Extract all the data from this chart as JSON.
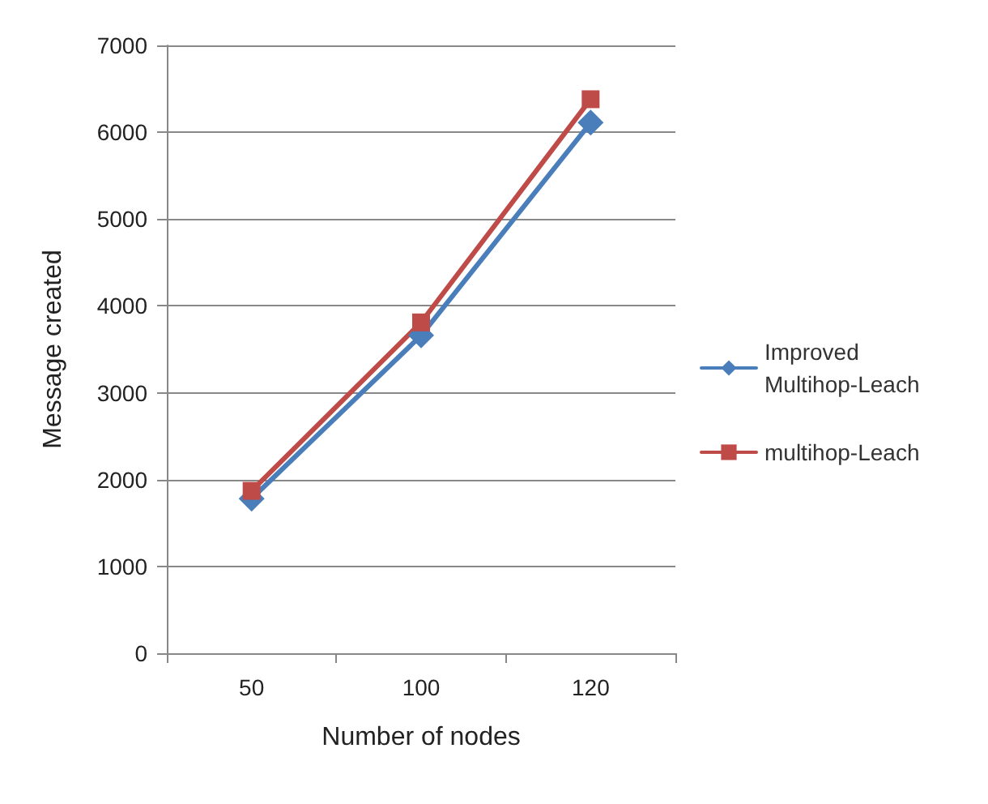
{
  "chart_data": {
    "type": "line",
    "xlabel": "Number of nodes",
    "ylabel": "Message created",
    "categories": [
      "50",
      "100",
      "120"
    ],
    "series": [
      {
        "name": "Improved Multihop-Leach",
        "color": "#4a7ebb",
        "marker": "diamond",
        "values": [
          1780,
          3660,
          6110
        ]
      },
      {
        "name": "multihop-Leach",
        "color": "#be4b48",
        "marker": "square",
        "values": [
          1870,
          3810,
          6380
        ]
      }
    ],
    "ylim": [
      0,
      7000
    ],
    "yticks": [
      0,
      1000,
      2000,
      3000,
      4000,
      5000,
      6000,
      7000
    ],
    "grid": "y",
    "legend": "right",
    "line_style": "solid"
  }
}
